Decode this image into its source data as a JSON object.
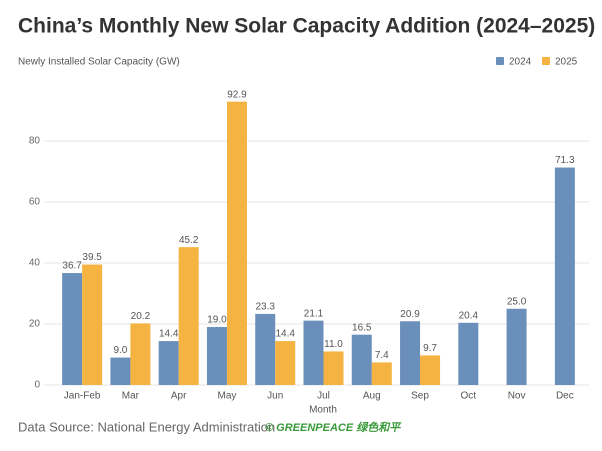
{
  "chart_data": {
    "type": "bar",
    "title": "China’s Monthly New Solar Capacity Addition (2024–2025)",
    "y_label": "Newly Installed Solar Capacity (GW)",
    "x_label": "Month",
    "source": "Data Source: National Energy Administration",
    "logo": "© GREENPEACE 绿色和平",
    "categories": [
      "Jan-Feb",
      "Mar",
      "Apr",
      "May",
      "Jun",
      "Jul",
      "Aug",
      "Sep",
      "Oct",
      "Nov",
      "Dec"
    ],
    "series": [
      {
        "name": "2024",
        "color": "#6a8fbb",
        "values": [
          36.7,
          9.0,
          14.4,
          19.0,
          23.3,
          21.1,
          16.5,
          20.9,
          20.4,
          25.0,
          71.3
        ],
        "value_labels": [
          "36.7",
          "9.0",
          "14.4",
          "19.0",
          "23.3",
          "21.1",
          "16.5",
          "20.9",
          "20.4",
          "25.0",
          "71.3"
        ]
      },
      {
        "name": "2025",
        "color": "#f5b342",
        "values": [
          39.5,
          20.2,
          45.2,
          92.9,
          14.4,
          11.0,
          7.4,
          9.7,
          null,
          null,
          null
        ],
        "value_labels": [
          "39.5",
          "20.2",
          "45.2",
          "92.9",
          "14.4",
          "11.0",
          "7.4",
          "9.7",
          null,
          null,
          null
        ]
      }
    ],
    "ylim": [
      0,
      100
    ],
    "yticks": [
      0,
      20,
      40,
      60,
      80
    ],
    "grid": true,
    "legend": "top-right"
  }
}
